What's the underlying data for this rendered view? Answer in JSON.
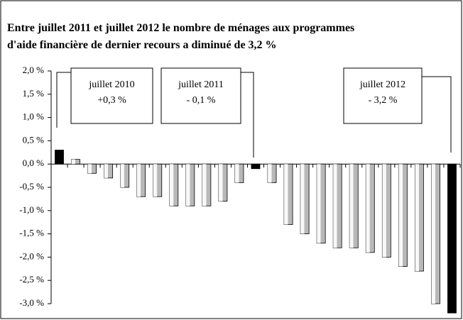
{
  "chart_data": {
    "type": "bar",
    "title": [
      "Entre juillet 2011  et  juillet 2012  le  nombre  de  ménages  aux  programmes",
      "d'aide financière de dernier recours a diminué de 3,2 %"
    ],
    "categories": [
      null,
      null,
      null,
      null,
      null,
      null,
      null,
      null,
      null,
      null,
      null,
      null,
      null,
      null,
      null,
      null,
      null,
      null,
      null,
      null,
      null,
      null,
      null,
      null,
      null
    ],
    "values": [
      0.3,
      0.1,
      -0.2,
      -0.3,
      -0.5,
      -0.7,
      -0.7,
      -0.9,
      -0.9,
      -0.9,
      -0.8,
      -0.4,
      -0.1,
      -0.4,
      -1.3,
      -1.5,
      -1.7,
      -1.8,
      -1.8,
      -1.9,
      -2.0,
      -2.2,
      -2.3,
      -3.0,
      -3.2
    ],
    "colors": [
      "#000000",
      "#b8b8b8",
      "#b8b8b8",
      "#b8b8b8",
      "#b8b8b8",
      "#b8b8b8",
      "#b8b8b8",
      "#b8b8b8",
      "#b8b8b8",
      "#b8b8b8",
      "#b8b8b8",
      "#b8b8b8",
      "#000000",
      "#b8b8b8",
      "#b8b8b8",
      "#b8b8b8",
      "#b8b8b8",
      "#b8b8b8",
      "#b8b8b8",
      "#b8b8b8",
      "#b8b8b8",
      "#b8b8b8",
      "#b8b8b8",
      "#b8b8b8",
      "#000000"
    ],
    "ylim": [
      -3.0,
      2.0
    ],
    "yticks": [
      {
        "value": 2.0,
        "label": "2,0 %"
      },
      {
        "value": 1.5,
        "label": "1,5 %"
      },
      {
        "value": 1.0,
        "label": "1,0 %"
      },
      {
        "value": 0.5,
        "label": "0,5 %"
      },
      {
        "value": 0.0,
        "label": "0,0 %"
      },
      {
        "value": -0.5,
        "label": "-0,5 %"
      },
      {
        "value": -1.0,
        "label": "-1,0 %"
      },
      {
        "value": -1.5,
        "label": "-1,5 %"
      },
      {
        "value": -2.0,
        "label": "-2,0 %"
      },
      {
        "value": -2.5,
        "label": "-2,5 %"
      },
      {
        "value": -3.0,
        "label": "-3,0 %"
      }
    ],
    "annotations": [
      {
        "lines": [
          "juillet 2010",
          "+0,3 %"
        ]
      },
      {
        "lines": [
          "juillet 2011",
          "- 0,1 %"
        ]
      },
      {
        "lines": [
          "juillet 2012",
          "- 3,2 %"
        ]
      }
    ]
  }
}
